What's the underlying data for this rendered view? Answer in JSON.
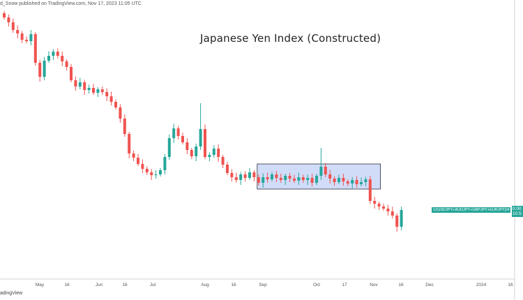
{
  "header": {
    "text": "d_Snow published on TradingView.com, Nov 17, 2023 11:05 UTC"
  },
  "footer": {
    "text": "adingView"
  },
  "colors": {
    "up": "#26a69a",
    "down": "#ef5350",
    "box_fill": "#c6d3f7",
    "box_border": "#2b2f3a"
  },
  "chart_data": {
    "type": "candlestick",
    "title": "Japanese Yen Index (Constructed)",
    "symbol_label": "1/(USDJPY+AUDJPY+GBPJPY+EURJPY)/4",
    "price_label": [
      "0.00",
      "10:5"
    ],
    "x_ticks": [
      "May",
      "16",
      "Jun",
      "16",
      "Jul",
      "Aug",
      "16",
      "Sep",
      "Oct",
      "17",
      "Nov",
      "16",
      "Dec",
      "2024",
      "16"
    ],
    "closes": [
      40.5,
      39.8,
      38.7,
      38.2,
      37.3,
      37.1,
      38.1,
      34,
      32,
      34.3,
      35,
      35.6,
      35,
      34.2,
      33.4,
      31.5,
      30.6,
      31.2,
      30.1,
      30.4,
      29.7,
      30.2,
      29.8,
      29.2,
      28.4,
      27.6,
      26,
      23.8,
      21,
      20.4,
      19.5,
      18.8,
      18.3,
      17.9,
      18,
      18.6,
      20.5,
      23.2,
      24.6,
      23.5,
      22.6,
      21.5,
      20.6,
      22,
      24.5,
      20.5,
      20.8,
      21.7,
      20.5,
      19.4,
      18.2,
      17.6,
      17.2,
      18,
      17.5,
      18.3,
      17.6,
      16.8,
      17.6,
      17.3,
      18,
      17.5,
      17.2,
      17.8,
      17.4,
      17.1,
      17.6,
      17.2,
      17.5,
      16.8,
      17.8,
      19.1,
      18,
      17.4,
      16.9,
      17.5,
      17,
      16.7,
      17.2,
      16.6,
      16.9,
      17.3,
      14.2,
      13.8,
      13.4,
      13.1,
      12.7,
      12.1,
      10.5,
      12.9
    ],
    "spike_highs": {
      "44": 28.2,
      "71": 21.8
    },
    "consolidation_box": {
      "start_index": 57,
      "end_index": 84,
      "top": 19.5,
      "bottom": 15.9
    }
  }
}
